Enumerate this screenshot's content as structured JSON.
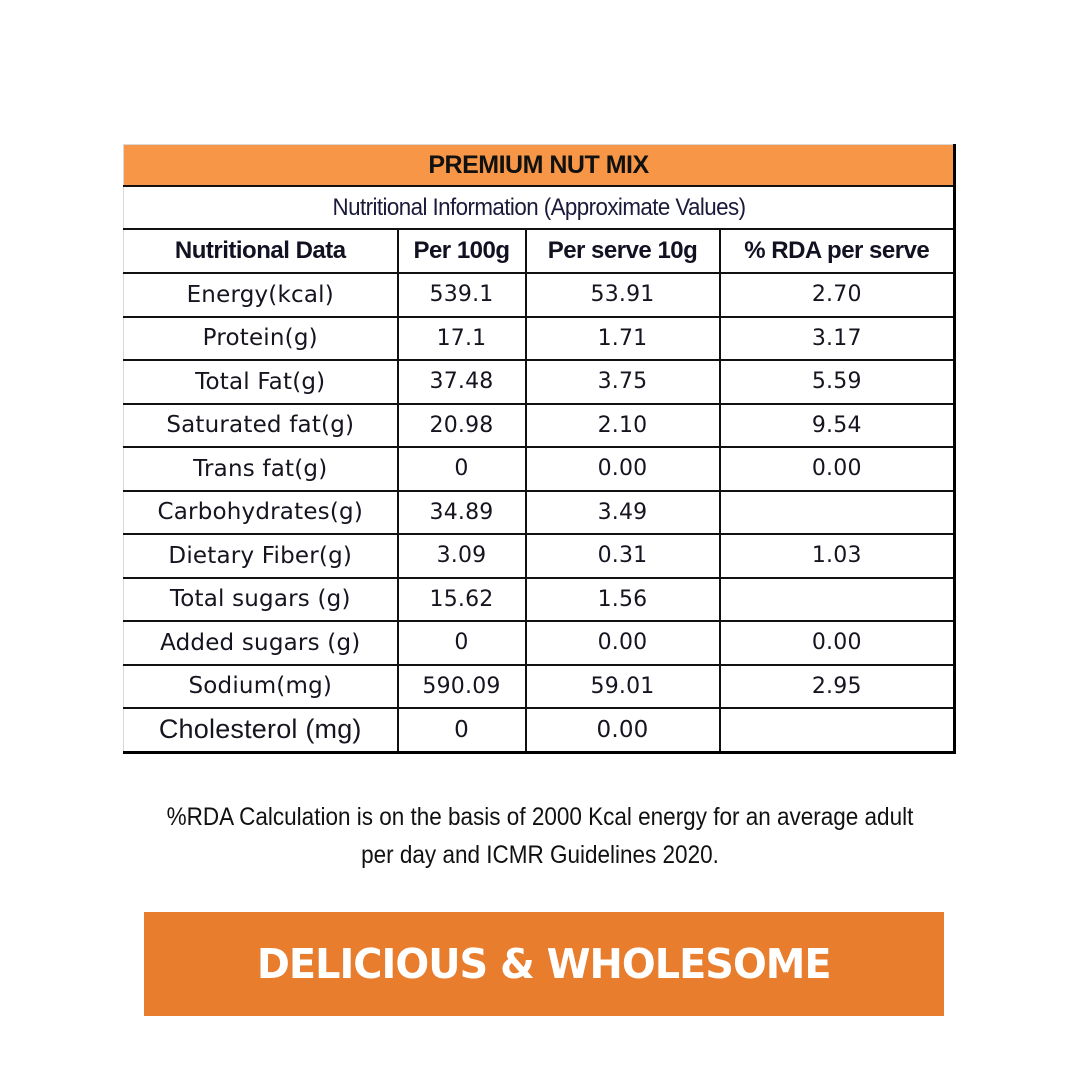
{
  "table": {
    "title": "PREMIUM NUT MIX",
    "subtitle": "Nutritional Information (Approximate Values)",
    "columns": [
      "Nutritional Data",
      "Per 100g",
      "Per serve 10g",
      "% RDA per serve"
    ],
    "rows": [
      {
        "label": "Energy(kcal)",
        "per100g": "539.1",
        "perServe": "53.91",
        "rda": "2.70"
      },
      {
        "label": "Protein(g)",
        "per100g": "17.1",
        "perServe": "1.71",
        "rda": "3.17"
      },
      {
        "label": "Total Fat(g)",
        "per100g": "37.48",
        "perServe": "3.75",
        "rda": "5.59"
      },
      {
        "label": "Saturated fat(g)",
        "per100g": "20.98",
        "perServe": "2.10",
        "rda": "9.54"
      },
      {
        "label": "Trans fat(g)",
        "per100g": "0",
        "perServe": "0.00",
        "rda": "0.00"
      },
      {
        "label": "Carbohydrates(g)",
        "per100g": "34.89",
        "perServe": "3.49",
        "rda": ""
      },
      {
        "label": "Dietary Fiber(g)",
        "per100g": "3.09",
        "perServe": "0.31",
        "rda": "1.03"
      },
      {
        "label": "Total sugars (g)",
        "per100g": "15.62",
        "perServe": "1.56",
        "rda": ""
      },
      {
        "label": "Added sugars (g)",
        "per100g": "0",
        "perServe": "0.00",
        "rda": "0.00"
      },
      {
        "label": "Sodium(mg)",
        "per100g": "590.09",
        "perServe": "59.01",
        "rda": "2.95"
      },
      {
        "label": "Cholesterol (mg)",
        "per100g": "0",
        "perServe": "0.00",
        "rda": ""
      }
    ]
  },
  "footnote": {
    "line1": "%RDA Calculation is on the basis of 2000 Kcal energy for an average adult",
    "line2": "per day and ICMR Guidelines 2020."
  },
  "banner": {
    "text": "DELICIOUS & WHOLESOME"
  },
  "colors": {
    "table_header": "#F79646",
    "banner": "#E87D2E",
    "banner_text": "#FFFFFF"
  }
}
